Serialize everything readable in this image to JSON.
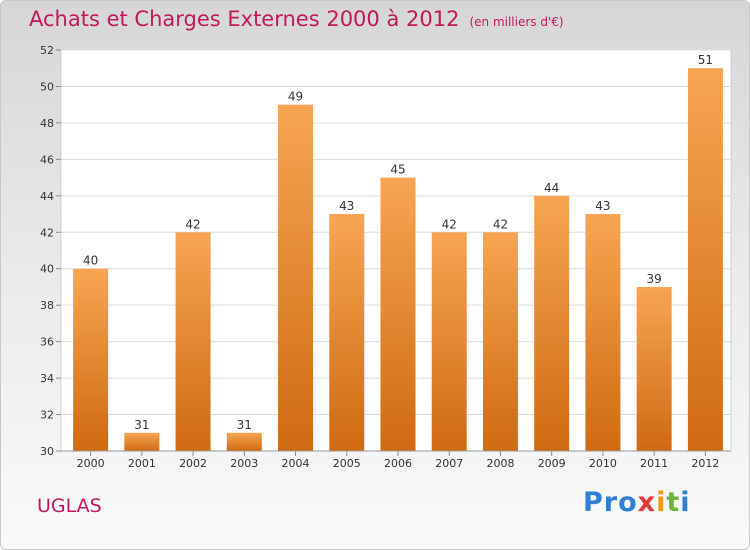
{
  "title": "Achats et Charges Externes 2000 à 2012",
  "subtitle": "(en milliers d'€)",
  "commune": "UGLAS",
  "logo": [
    "Pro",
    "x",
    "i",
    "t",
    "i"
  ],
  "colors": {
    "bar_top": "#f7a552",
    "bar_bottom": "#cf6a12",
    "title": "#c2185b"
  },
  "chart_data": {
    "type": "bar",
    "title": "Achats et Charges Externes 2000 à 2012",
    "subtitle": "(en milliers d'€)",
    "categories": [
      "2000",
      "2001",
      "2002",
      "2003",
      "2004",
      "2005",
      "2006",
      "2007",
      "2008",
      "2009",
      "2010",
      "2011",
      "2012"
    ],
    "values": [
      40,
      31,
      42,
      31,
      49,
      43,
      45,
      42,
      42,
      44,
      43,
      39,
      51
    ],
    "ylim": [
      30,
      52
    ],
    "yticks": [
      30,
      32,
      34,
      36,
      38,
      40,
      42,
      44,
      46,
      48,
      50,
      52
    ],
    "grid": true,
    "data_labels": true
  }
}
